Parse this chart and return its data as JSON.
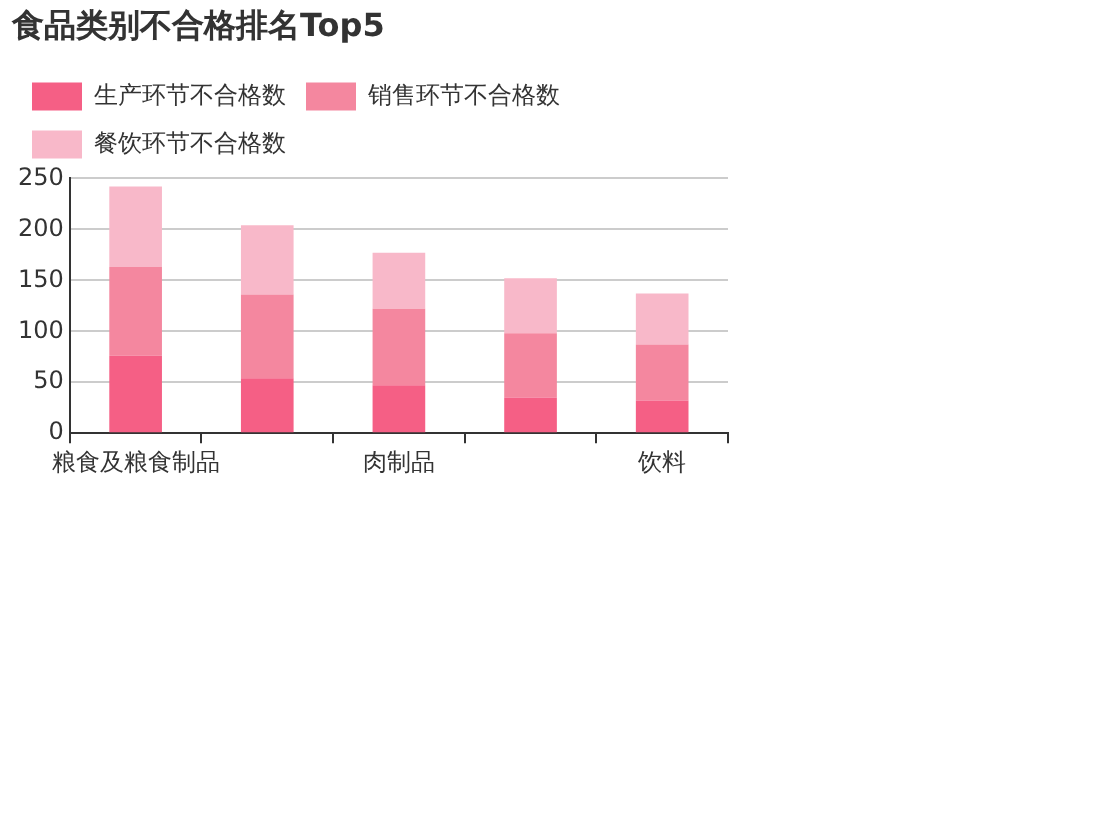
{
  "chart_data": {
    "type": "bar",
    "title": "食品类别不合格排名Top5",
    "categories": [
      "粮食及粮食制品",
      null,
      "肉制品",
      null,
      "饮料"
    ],
    "stacked": true,
    "series": [
      {
        "name": "生产环节不合格数",
        "color": "#f55f85",
        "values": [
          76,
          54,
          47,
          35,
          32
        ]
      },
      {
        "name": "销售环节不合格数",
        "color": "#f4879f",
        "values": [
          87,
          82,
          75,
          63,
          55
        ]
      },
      {
        "name": "餐饮环节不合格数",
        "color": "#f8b8c9",
        "values": [
          79,
          68,
          55,
          54,
          50
        ]
      }
    ],
    "ylim": [
      0,
      250
    ],
    "yticks": [
      0,
      50,
      100,
      150,
      200,
      250
    ],
    "grid": "y",
    "legend": "top left"
  }
}
